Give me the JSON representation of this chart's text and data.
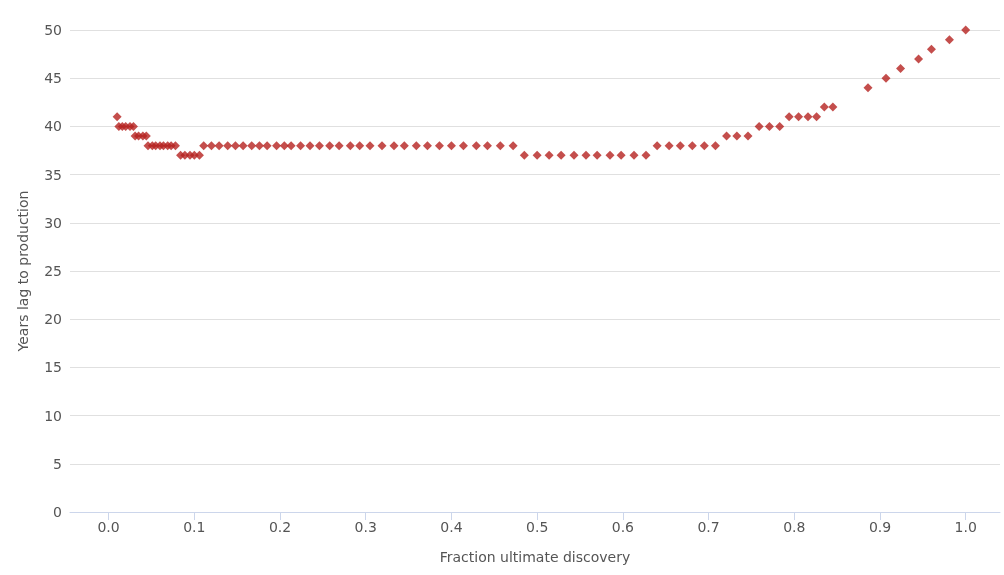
{
  "chart_data": {
    "type": "scatter",
    "xlabel": "Fraction ultimate discovery",
    "ylabel": "Years lag to production",
    "x": [
      0.01,
      0.012,
      0.016,
      0.02,
      0.025,
      0.029,
      0.031,
      0.035,
      0.04,
      0.044,
      0.046,
      0.051,
      0.055,
      0.06,
      0.064,
      0.069,
      0.073,
      0.078,
      0.084,
      0.089,
      0.095,
      0.1,
      0.106,
      0.111,
      0.12,
      0.129,
      0.139,
      0.148,
      0.157,
      0.167,
      0.176,
      0.185,
      0.196,
      0.205,
      0.213,
      0.224,
      0.235,
      0.246,
      0.258,
      0.269,
      0.282,
      0.293,
      0.305,
      0.319,
      0.333,
      0.345,
      0.359,
      0.372,
      0.386,
      0.4,
      0.414,
      0.429,
      0.442,
      0.457,
      0.472,
      0.485,
      0.5,
      0.514,
      0.528,
      0.543,
      0.557,
      0.57,
      0.585,
      0.598,
      0.613,
      0.627,
      0.64,
      0.654,
      0.667,
      0.681,
      0.695,
      0.708,
      0.721,
      0.733,
      0.746,
      0.759,
      0.771,
      0.783,
      0.794,
      0.805,
      0.816,
      0.826,
      0.835,
      0.845,
      0.886,
      0.907,
      0.924,
      0.945,
      0.96,
      0.981,
      1.0
    ],
    "series": [
      {
        "color": "#b5221f",
        "values": [
          41,
          40,
          40,
          40,
          40,
          40,
          39,
          39,
          39,
          39,
          38,
          38,
          38,
          38,
          38,
          38,
          38,
          38,
          37,
          37,
          37,
          37,
          37,
          38,
          38,
          38,
          38,
          38,
          38,
          38,
          38,
          38,
          38,
          38,
          38,
          38,
          38,
          38,
          38,
          38,
          38,
          38,
          38,
          38,
          38,
          38,
          38,
          38,
          38,
          38,
          38,
          38,
          38,
          38,
          38,
          37,
          37,
          37,
          37,
          37,
          37,
          37,
          37,
          37,
          37,
          37,
          38,
          38,
          38,
          38,
          38,
          38,
          39,
          39,
          39,
          40,
          40,
          40,
          41,
          41,
          41,
          41,
          42,
          42,
          44,
          45,
          46,
          47,
          48,
          49,
          50
        ]
      }
    ],
    "xlim": [
      -0.045,
      1.04
    ],
    "ylim": [
      0,
      50
    ],
    "xticks": [
      {
        "value": 0,
        "label": "0.0"
      },
      0.1,
      0.2,
      0.3,
      0.4,
      0.5,
      0.6,
      0.7,
      0.8,
      0.9,
      {
        "value": 1,
        "label": "1.0"
      }
    ],
    "yticks": [
      0,
      5,
      10,
      15,
      20,
      25,
      30,
      35,
      40,
      45,
      50
    ],
    "grid": "y",
    "marker": "diamond"
  }
}
